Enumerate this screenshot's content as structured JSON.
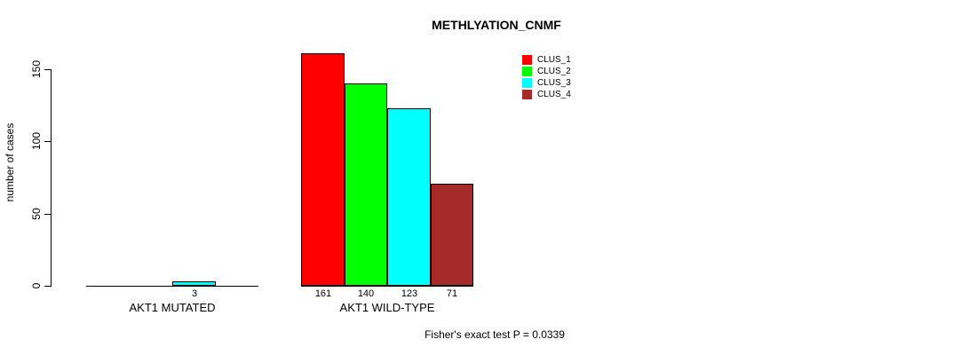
{
  "chart_data": {
    "type": "bar",
    "title": "METHLYATION_CNMF",
    "ylabel": "number of cases",
    "xlabel": "",
    "categories": [
      "AKT1 MUTATED",
      "AKT1 WILD-TYPE"
    ],
    "series": [
      {
        "name": "CLUS_1",
        "color": "#FF0000",
        "values": [
          0,
          161
        ]
      },
      {
        "name": "CLUS_2",
        "color": "#00FF00",
        "values": [
          0,
          140
        ]
      },
      {
        "name": "CLUS_3",
        "color": "#00FFFF",
        "values": [
          3,
          123
        ]
      },
      {
        "name": "CLUS_4",
        "color": "#A52A2A",
        "values": [
          0,
          71
        ]
      }
    ],
    "yticks": [
      0,
      50,
      100,
      150
    ],
    "ylim": [
      0,
      165
    ],
    "grid": false,
    "legend_position": "top-right",
    "annotation": "Fisher's exact test P = 0.0339",
    "bar_border_color": "#000000",
    "background_color": "#FFFFFF"
  }
}
